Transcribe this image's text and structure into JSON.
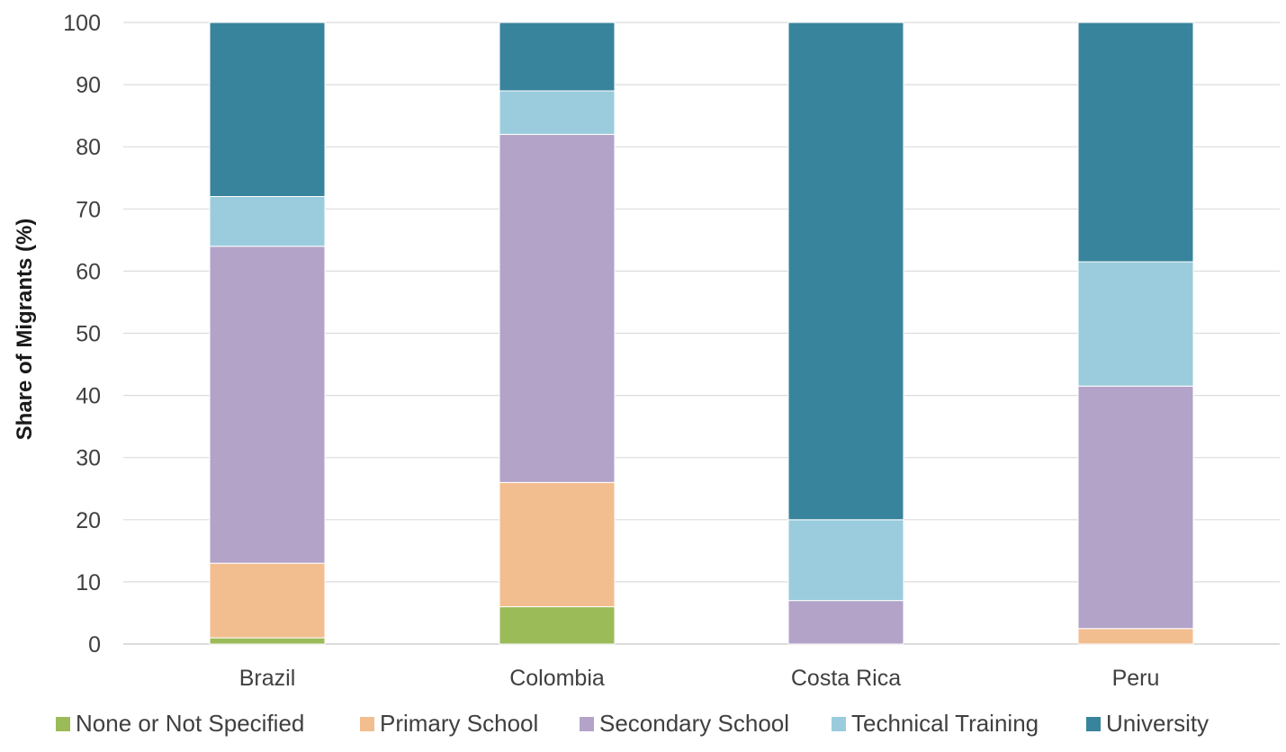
{
  "chart_data": {
    "type": "bar",
    "stacked": true,
    "title": "",
    "xlabel": "",
    "ylabel": "Share of Migrants (%)",
    "ylim": [
      0,
      100
    ],
    "yticks": [
      0,
      10,
      20,
      30,
      40,
      50,
      60,
      70,
      80,
      90,
      100
    ],
    "grid": true,
    "legend_position": "bottom",
    "categories": [
      "Brazil",
      "Colombia",
      "Costa Rica",
      "Peru"
    ],
    "series": [
      {
        "name": "None or Not Specified",
        "color": "#9BBB59",
        "values": [
          1,
          6,
          0,
          0
        ]
      },
      {
        "name": "Primary School",
        "color": "#F2BE8F",
        "values": [
          12,
          20,
          0,
          2.5
        ]
      },
      {
        "name": "Secondary School",
        "color": "#B3A3C9",
        "values": [
          51,
          56,
          7,
          39
        ]
      },
      {
        "name": "Technical Training",
        "color": "#9ACCDD",
        "values": [
          8,
          7,
          13,
          20
        ]
      },
      {
        "name": "University",
        "color": "#38849C",
        "values": [
          28,
          11,
          80,
          38.5
        ]
      }
    ]
  }
}
